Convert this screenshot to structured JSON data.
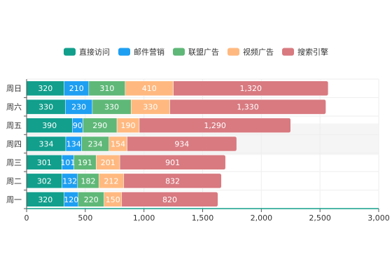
{
  "chart_data": {
    "type": "bar",
    "orientation": "horizontal",
    "stacked": true,
    "categories": [
      "周一",
      "周二",
      "周三",
      "周四",
      "周五",
      "周六",
      "周日"
    ],
    "series": [
      {
        "name": "直接访问",
        "color": "#129f8c",
        "values": [
          320,
          302,
          301,
          334,
          390,
          330,
          320
        ],
        "labels": [
          "320",
          "302",
          "301",
          "334",
          "390",
          "330",
          "320"
        ]
      },
      {
        "name": "邮件营销",
        "color": "#1e9ff2",
        "values": [
          120,
          132,
          101,
          134,
          90,
          230,
          210
        ],
        "labels": [
          "120",
          "132",
          "101",
          "134",
          "90",
          "230",
          "210"
        ]
      },
      {
        "name": "联盟广告",
        "color": "#5fb878",
        "values": [
          220,
          182,
          191,
          234,
          290,
          330,
          310
        ],
        "labels": [
          "220",
          "182",
          "191",
          "234",
          "290",
          "330",
          "310"
        ]
      },
      {
        "name": "视频广告",
        "color": "#ffb980",
        "values": [
          150,
          212,
          201,
          154,
          190,
          330,
          410
        ],
        "labels": [
          "150",
          "212",
          "201",
          "154",
          "190",
          "330",
          "410"
        ]
      },
      {
        "name": "搜索引擎",
        "color": "#d87a80",
        "values": [
          820,
          832,
          901,
          934,
          1290,
          1330,
          1320
        ],
        "labels": [
          "820",
          "832",
          "901",
          "934",
          "1,290",
          "1,330",
          "1,320"
        ]
      }
    ],
    "xlim": [
      0,
      3000
    ],
    "xticks": [
      0,
      500,
      1000,
      1500,
      2000,
      2500,
      3000
    ],
    "xtick_labels": [
      "0",
      "500",
      "1,000",
      "1,500",
      "2,000",
      "2,500",
      "3,000"
    ],
    "legend_position": "top-center",
    "grid": true,
    "hover_highlight_category": "周四"
  }
}
